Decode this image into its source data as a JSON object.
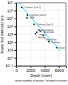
{
  "chart_data": {
    "type": "scatter",
    "xlabel": "Depth (mwe)",
    "ylabel": "Muon flux intensity (m)",
    "annotations": [
      "mean number of muons / incident to matter"
    ],
    "series": [
      {
        "type": "scatter",
        "marker": "square",
        "color": "#000000",
        "x": [
          750,
          1550,
          1500,
          2500,
          3200,
          3400,
          2900,
          2700,
          3800,
          4600,
          5700
        ],
        "values": [
          2500000.0,
          280000.0,
          120000.0,
          18000.0,
          3500,
          2500,
          1800,
          1200,
          700,
          120,
          20
        ],
        "labels": [
          "Canfranc (Lab 1)",
          "Canfranc (Lab 2)",
          "LSM",
          "Canfranc (Lab 3)",
          "Gran Sasso",
          "Homestake",
          "Frejus",
          "Baksan",
          "Mont Blanc",
          "Sudbury",
          "Kasei"
        ]
      },
      {
        "type": "line",
        "color": "#00ccff",
        "x": [
          300,
          6200
        ],
        "values": [
          10000000.0,
          8
        ]
      }
    ],
    "xlim": [
      0,
      7000
    ],
    "xticks": [
      0,
      2000,
      4000,
      6000
    ],
    "ylim": [
      0.1,
      10000000.0
    ],
    "yticks": [
      {
        "value": 0.1,
        "label": "10⁻¹"
      },
      {
        "value": 1,
        "label": "10⁰"
      },
      {
        "value": 10,
        "label": "10¹"
      },
      {
        "value": 100,
        "label": "10²"
      },
      {
        "value": 1000,
        "label": "10³"
      },
      {
        "value": 10000,
        "label": "10⁴"
      },
      {
        "value": 100000,
        "label": "10⁵"
      },
      {
        "value": 1000000,
        "label": "10⁶"
      },
      {
        "value": 10000000,
        "label": "10⁷"
      }
    ],
    "log": "y",
    "grid": true,
    "bg_color": "#ffffff"
  }
}
